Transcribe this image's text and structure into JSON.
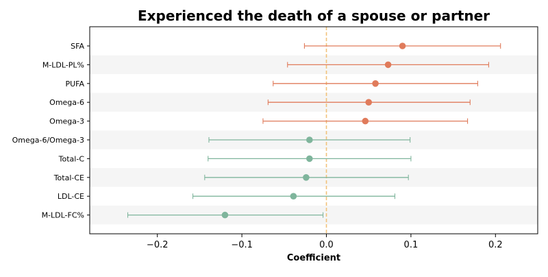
{
  "chart_data": {
    "type": "forest",
    "title": "Experienced the death of a spouse or partner",
    "xlabel": "Coefficient",
    "ylabel": "",
    "xlim": [
      -0.28,
      0.25
    ],
    "xticks": [
      -0.2,
      -0.1,
      0.0,
      0.1,
      0.2
    ],
    "xtick_labels": [
      "−0.2",
      "−0.1",
      "0.0",
      "0.1",
      "0.2"
    ],
    "reference_line": 0.0,
    "row_banding": true,
    "colors": {
      "positive": "#e07b5b",
      "negative": "#7fb59c",
      "reference": "#f2c27a",
      "band": "#f5f5f5"
    },
    "rows": [
      {
        "label": "SFA",
        "estimate": 0.09,
        "ci_low": -0.026,
        "ci_high": 0.206,
        "group": "positive"
      },
      {
        "label": "M-LDL-PL%",
        "estimate": 0.073,
        "ci_low": -0.046,
        "ci_high": 0.192,
        "group": "positive"
      },
      {
        "label": "PUFA",
        "estimate": 0.058,
        "ci_low": -0.063,
        "ci_high": 0.179,
        "group": "positive"
      },
      {
        "label": "Omega-6",
        "estimate": 0.05,
        "ci_low": -0.069,
        "ci_high": 0.17,
        "group": "positive"
      },
      {
        "label": "Omega-3",
        "estimate": 0.046,
        "ci_low": -0.075,
        "ci_high": 0.167,
        "group": "positive"
      },
      {
        "label": "Omega-6/Omega-3",
        "estimate": -0.02,
        "ci_low": -0.139,
        "ci_high": 0.099,
        "group": "negative"
      },
      {
        "label": "Total-C",
        "estimate": -0.02,
        "ci_low": -0.14,
        "ci_high": 0.1,
        "group": "negative"
      },
      {
        "label": "Total-CE",
        "estimate": -0.024,
        "ci_low": -0.144,
        "ci_high": 0.097,
        "group": "negative"
      },
      {
        "label": "LDL-CE",
        "estimate": -0.039,
        "ci_low": -0.158,
        "ci_high": 0.081,
        "group": "negative"
      },
      {
        "label": "M-LDL-FC%",
        "estimate": -0.12,
        "ci_low": -0.235,
        "ci_high": -0.004,
        "group": "negative"
      }
    ]
  }
}
